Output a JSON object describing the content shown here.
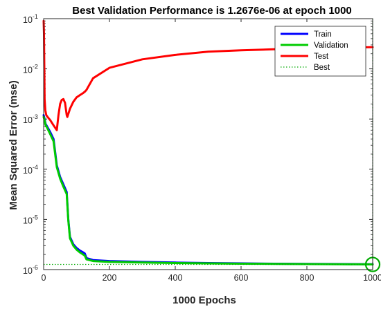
{
  "chart_data": {
    "type": "line",
    "title": "Best Validation Performance is 1.2676e-06 at epoch 1000",
    "xlabel": "1000 Epochs",
    "ylabel": "Mean Squared Error  (mse)",
    "xlim": [
      0,
      1000
    ],
    "ylim": [
      1e-06,
      0.1
    ],
    "yscale": "log",
    "xticks": [
      "0",
      "200",
      "400",
      "600",
      "800",
      "1000"
    ],
    "yticks": [
      {
        "base": "10",
        "exp": "-6"
      },
      {
        "base": "10",
        "exp": "-5"
      },
      {
        "base": "10",
        "exp": "-4"
      },
      {
        "base": "10",
        "exp": "-3"
      },
      {
        "base": "10",
        "exp": "-2"
      },
      {
        "base": "10",
        "exp": "-1"
      }
    ],
    "legend_position": "top-right",
    "grid": false,
    "series": [
      {
        "name": "Train",
        "color": "#0000ff",
        "x": [
          0,
          3,
          6,
          10,
          20,
          30,
          40,
          50,
          60,
          70,
          75,
          80,
          90,
          100,
          110,
          120,
          125,
          130,
          150,
          200,
          300,
          400,
          500,
          600,
          700,
          800,
          900,
          1000
        ],
        "y": [
          0.0012,
          0.001,
          0.0008,
          0.00072,
          0.00055,
          0.0004,
          0.00012,
          7e-05,
          5e-05,
          3.5e-05,
          1e-05,
          4.5e-06,
          3.2e-06,
          2.7e-06,
          2.4e-06,
          2.2e-06,
          2.1e-06,
          1.7e-06,
          1.55e-06,
          1.48e-06,
          1.42e-06,
          1.38e-06,
          1.35e-06,
          1.33e-06,
          1.31e-06,
          1.3e-06,
          1.29e-06,
          1.28e-06
        ]
      },
      {
        "name": "Validation",
        "color": "#00cc00",
        "x": [
          0,
          3,
          6,
          10,
          20,
          30,
          40,
          50,
          60,
          70,
          75,
          80,
          90,
          100,
          110,
          120,
          125,
          130,
          150,
          200,
          300,
          400,
          500,
          600,
          700,
          800,
          900,
          1000
        ],
        "y": [
          0.0011,
          0.00095,
          0.00076,
          0.00068,
          0.0005,
          0.00036,
          0.00011,
          6.5e-05,
          4.5e-05,
          3.2e-05,
          9.5e-06,
          4.2e-06,
          3e-06,
          2.5e-06,
          2.2e-06,
          2e-06,
          1.9e-06,
          1.6e-06,
          1.48e-06,
          1.42e-06,
          1.38e-06,
          1.35e-06,
          1.33e-06,
          1.31e-06,
          1.3e-06,
          1.29e-06,
          1.28e-06,
          1.2676e-06
        ]
      },
      {
        "name": "Test",
        "color": "#ff0000",
        "x": [
          0,
          1,
          2,
          3,
          5,
          8,
          12,
          20,
          30,
          40,
          45,
          50,
          55,
          60,
          65,
          70,
          72,
          80,
          90,
          100,
          110,
          120,
          125,
          130,
          150,
          200,
          300,
          400,
          500,
          600,
          700,
          800,
          900,
          1000
        ],
        "y": [
          0.09,
          0.05,
          0.01,
          0.0025,
          0.0015,
          0.0012,
          0.0011,
          0.00095,
          0.00075,
          0.0006,
          0.0012,
          0.002,
          0.0024,
          0.0025,
          0.0021,
          0.0012,
          0.0011,
          0.0016,
          0.0022,
          0.0027,
          0.003,
          0.0033,
          0.0035,
          0.0038,
          0.0065,
          0.0105,
          0.0155,
          0.019,
          0.022,
          0.0235,
          0.0245,
          0.0255,
          0.0265,
          0.027
        ]
      }
    ],
    "best": {
      "name": "Best",
      "epoch": 1000,
      "value": 1.2676e-06,
      "color": "#00aa00"
    }
  }
}
